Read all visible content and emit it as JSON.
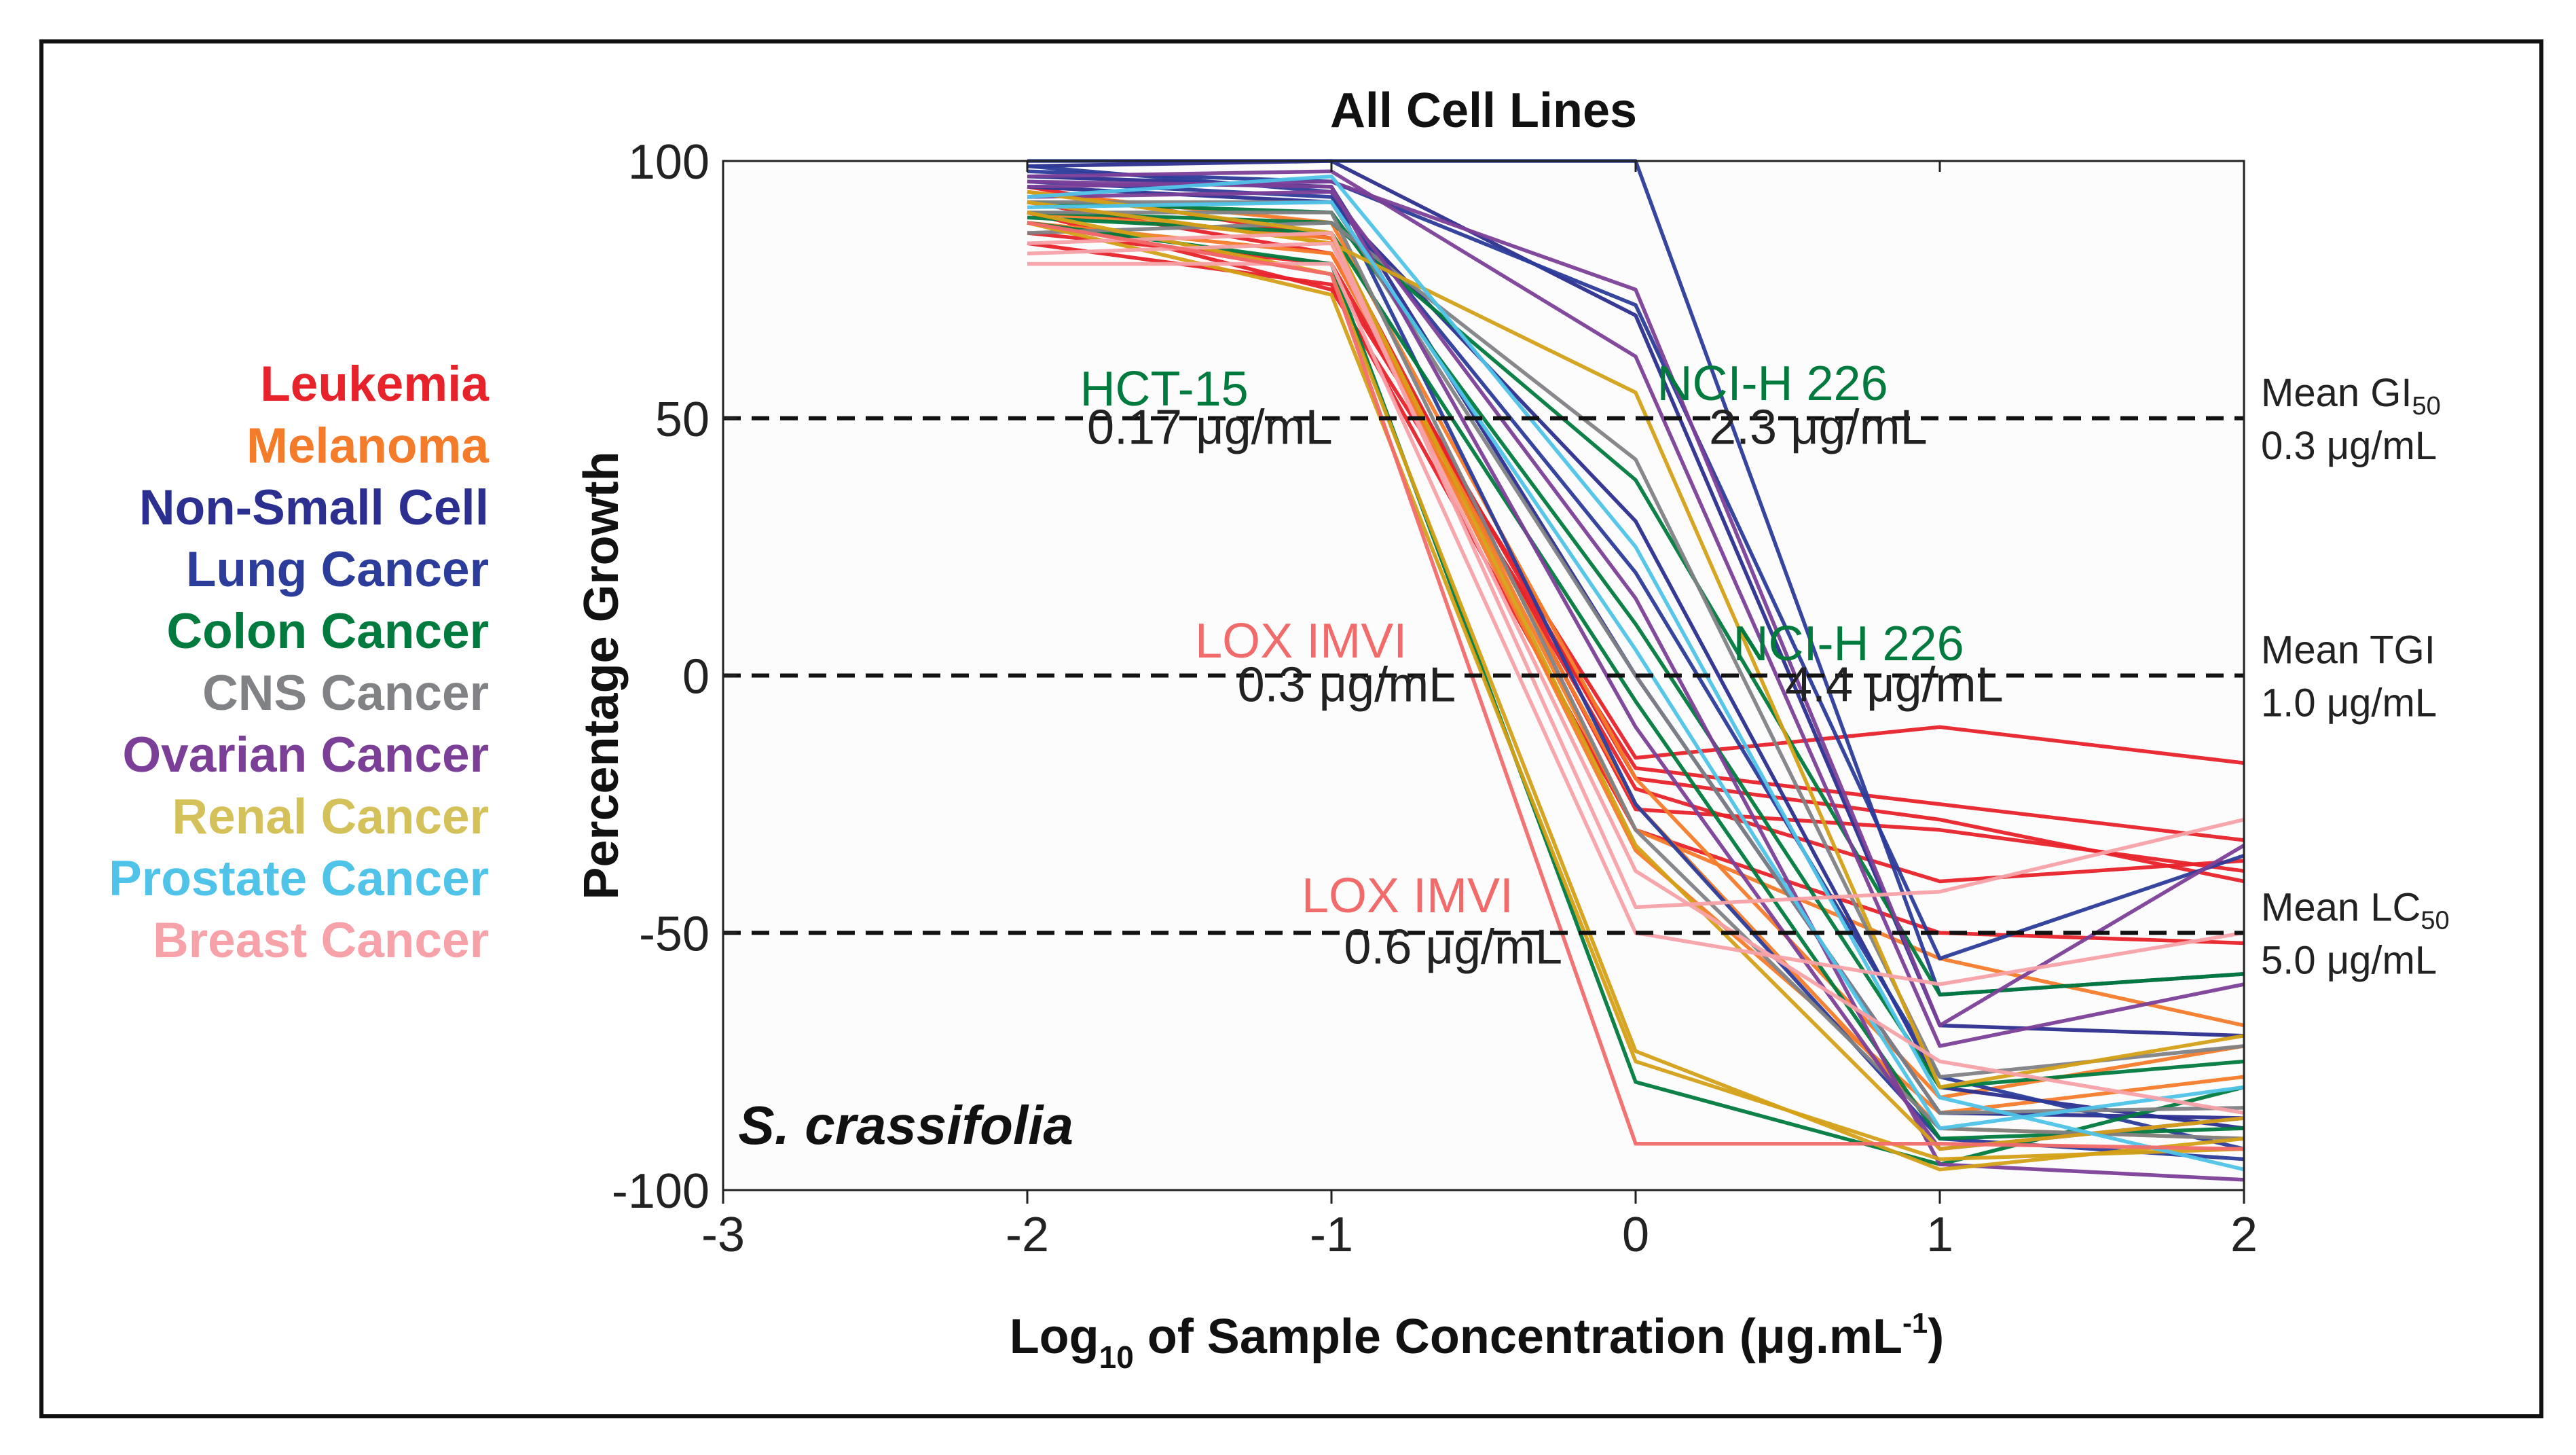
{
  "chart_data": {
    "type": "line",
    "title": "All Cell Lines",
    "species": "S. crassifolia",
    "xlabel_parts": [
      "Log",
      "10",
      " of Sample Concentration (μg.mL",
      "-1",
      ")"
    ],
    "ylabel": "Percentage Growth",
    "xlim": [
      -3,
      2
    ],
    "ylim": [
      -100,
      100
    ],
    "xticks": [
      "-3",
      "-2",
      "-1",
      "0",
      "1",
      "2"
    ],
    "yticks": [
      "100",
      "50",
      "0",
      "-50",
      "-100"
    ],
    "x": [
      -2,
      -1,
      0,
      1,
      2
    ],
    "legend": [
      {
        "name": "Leukemia",
        "color": "#e8222a"
      },
      {
        "name": "Melanoma",
        "color": "#f47b2a"
      },
      {
        "name": "Non-Small Cell",
        "color": "#2b2f8f"
      },
      {
        "name": "Lung Cancer",
        "color": "#2b3c9a"
      },
      {
        "name": "Colon Cancer",
        "color": "#007a3d"
      },
      {
        "name": "CNS Cancer",
        "color": "#808285"
      },
      {
        "name": "Ovarian Cancer",
        "color": "#7b3f98"
      },
      {
        "name": "Renal Cancer",
        "color": "#d4c15a"
      },
      {
        "name": "Prostate Cancer",
        "color": "#4fc3e8"
      },
      {
        "name": "Breast Cancer",
        "color": "#f7a1a8"
      }
    ],
    "reference_lines": [
      {
        "y": 50,
        "label_lines": [
          "Mean GI",
          "0.3 μg/mL"
        ],
        "label_sub": "50"
      },
      {
        "y": 0,
        "label_lines": [
          "Mean TGI",
          "1.0 μg/mL"
        ],
        "label_sub": ""
      },
      {
        "y": -50,
        "label_lines": [
          "Mean LC",
          "5.0 μg/mL"
        ],
        "label_sub": "50"
      }
    ],
    "annotations": [
      {
        "text": "HCT-15",
        "color": "#007a3d",
        "x": -1.55,
        "y": 52.5
      },
      {
        "text": "0.17 μg/mL",
        "color": "#222222",
        "x": -1.4,
        "y": 45
      },
      {
        "text": "NCI-H 226",
        "color": "#007a3d",
        "x": 0.45,
        "y": 53.5
      },
      {
        "text": "2.3 μg/mL",
        "color": "#222222",
        "x": 0.6,
        "y": 45
      },
      {
        "text": "LOX IMVI",
        "color": "#f26b6b",
        "x": -1.1,
        "y": 3.5
      },
      {
        "text": "0.3 μg/mL",
        "color": "#222222",
        "x": -0.95,
        "y": -5
      },
      {
        "text": "NCI-H 226",
        "color": "#007a3d",
        "x": 0.7,
        "y": 3
      },
      {
        "text": "4.4 μg/mL",
        "color": "#222222",
        "x": 0.85,
        "y": -5
      },
      {
        "text": "LOX IMVI",
        "color": "#f26b6b",
        "x": -0.75,
        "y": -46
      },
      {
        "text": "0.6 μg/mL",
        "color": "#222222",
        "x": -0.6,
        "y": -56
      }
    ],
    "series": [
      {
        "name": "Leukemia",
        "color": "#e8222a",
        "values": [
          88,
          78,
          -16,
          -10,
          -17
        ]
      },
      {
        "name": "Leukemia",
        "color": "#e8222a",
        "values": [
          90,
          75,
          -18,
          -25,
          -32
        ]
      },
      {
        "name": "Leukemia",
        "color": "#e8222a",
        "values": [
          86,
          80,
          -22,
          -40,
          -36
        ]
      },
      {
        "name": "Leukemia",
        "color": "#e8222a",
        "values": [
          92,
          82,
          -20,
          -28,
          -40
        ]
      },
      {
        "name": "Leukemia",
        "color": "#e8222a",
        "values": [
          95,
          85,
          -26,
          -30,
          -38
        ]
      },
      {
        "name": "Leukemia",
        "color": "#e8222a",
        "values": [
          84,
          76,
          -30,
          -50,
          -52
        ]
      },
      {
        "name": "Melanoma",
        "color": "#f47b2a",
        "values": [
          90,
          85,
          -30,
          -55,
          -68
        ]
      },
      {
        "name": "Melanoma",
        "color": "#f47b2a",
        "values": [
          94,
          88,
          -20,
          -82,
          -72
        ]
      },
      {
        "name": "Melanoma",
        "color": "#f47b2a",
        "values": [
          88,
          82,
          -25,
          -88,
          -90
        ]
      },
      {
        "name": "Melanoma",
        "color": "#f47b2a",
        "values": [
          92,
          84,
          -34,
          -85,
          -78
        ]
      },
      {
        "name": "Non-Small Cell",
        "color": "#2b2f8f",
        "values": [
          99,
          100,
          70,
          -68,
          -70
        ]
      },
      {
        "name": "Non-Small Cell",
        "color": "#2b2f8f",
        "values": [
          95,
          92,
          30,
          -80,
          -88
        ]
      },
      {
        "name": "Non-Small Cell",
        "color": "#2b2f8f",
        "values": [
          97,
          95,
          0,
          -85,
          -86
        ]
      },
      {
        "name": "Lung Cancer",
        "color": "#2b3c9a",
        "values": [
          100,
          100,
          100,
          -62,
          -58
        ]
      },
      {
        "name": "Lung Cancer",
        "color": "#2b3c9a",
        "values": [
          98,
          96,
          72,
          -55,
          -35
        ]
      },
      {
        "name": "Lung Cancer",
        "color": "#2b3c9a",
        "values": [
          96,
          93,
          20,
          -78,
          -92
        ]
      },
      {
        "name": "Lung Cancer",
        "color": "#2b3c9a",
        "values": [
          99,
          94,
          -25,
          -90,
          -94
        ]
      },
      {
        "name": "Colon Cancer",
        "color": "#007a3d",
        "values": [
          88,
          80,
          -79,
          -95,
          -80
        ]
      },
      {
        "name": "Colon Cancer",
        "color": "#007a3d",
        "values": [
          90,
          88,
          38,
          -62,
          -58
        ]
      },
      {
        "name": "Colon Cancer",
        "color": "#007a3d",
        "values": [
          92,
          90,
          10,
          -80,
          -75
        ]
      },
      {
        "name": "Colon Cancer",
        "color": "#007a3d",
        "values": [
          89,
          86,
          -5,
          -90,
          -88
        ]
      },
      {
        "name": "CNS Cancer",
        "color": "#808285",
        "values": [
          86,
          88,
          42,
          -78,
          -72
        ]
      },
      {
        "name": "CNS Cancer",
        "color": "#808285",
        "values": [
          90,
          90,
          -30,
          -88,
          -90
        ]
      },
      {
        "name": "CNS Cancer",
        "color": "#808285",
        "values": [
          92,
          92,
          0,
          -85,
          -84
        ]
      },
      {
        "name": "Ovarian Cancer",
        "color": "#7b3f98",
        "values": [
          95,
          96,
          75,
          -68,
          -33
        ]
      },
      {
        "name": "Ovarian Cancer",
        "color": "#7b3f98",
        "values": [
          97,
          98,
          62,
          -72,
          -60
        ]
      },
      {
        "name": "Ovarian Cancer",
        "color": "#7b3f98",
        "values": [
          93,
          94,
          15,
          -95,
          -98
        ]
      },
      {
        "name": "Ovarian Cancer",
        "color": "#7b3f98",
        "values": [
          96,
          95,
          -10,
          -92,
          -86
        ]
      },
      {
        "name": "Renal Cancer",
        "color": "#d4a017",
        "values": [
          90,
          78,
          -73,
          -96,
          -90
        ]
      },
      {
        "name": "Renal Cancer",
        "color": "#d4a017",
        "values": [
          88,
          74,
          -75,
          -94,
          -92
        ]
      },
      {
        "name": "Renal Cancer",
        "color": "#d4a017",
        "values": [
          92,
          84,
          55,
          -80,
          -70
        ]
      },
      {
        "name": "Renal Cancer",
        "color": "#d4a017",
        "values": [
          94,
          86,
          -33,
          -92,
          -86
        ]
      },
      {
        "name": "Prostate Cancer",
        "color": "#4fc3e8",
        "values": [
          93,
          97,
          25,
          -82,
          -96
        ]
      },
      {
        "name": "Prostate Cancer",
        "color": "#4fc3e8",
        "values": [
          91,
          92,
          5,
          -88,
          -80
        ]
      },
      {
        "name": "Breast Cancer",
        "color": "#f7a1a8",
        "values": [
          80,
          80,
          -50,
          -60,
          -50
        ]
      },
      {
        "name": "Breast Cancer",
        "color": "#f7a1a8",
        "values": [
          84,
          86,
          -45,
          -42,
          -28
        ]
      },
      {
        "name": "Breast Cancer",
        "color": "#f7a1a8",
        "values": [
          82,
          84,
          -38,
          -75,
          -85
        ]
      },
      {
        "name": "Breast Cancer",
        "color": "#f26b6b",
        "values": [
          88,
          78,
          -91,
          -91,
          -92
        ]
      }
    ]
  }
}
